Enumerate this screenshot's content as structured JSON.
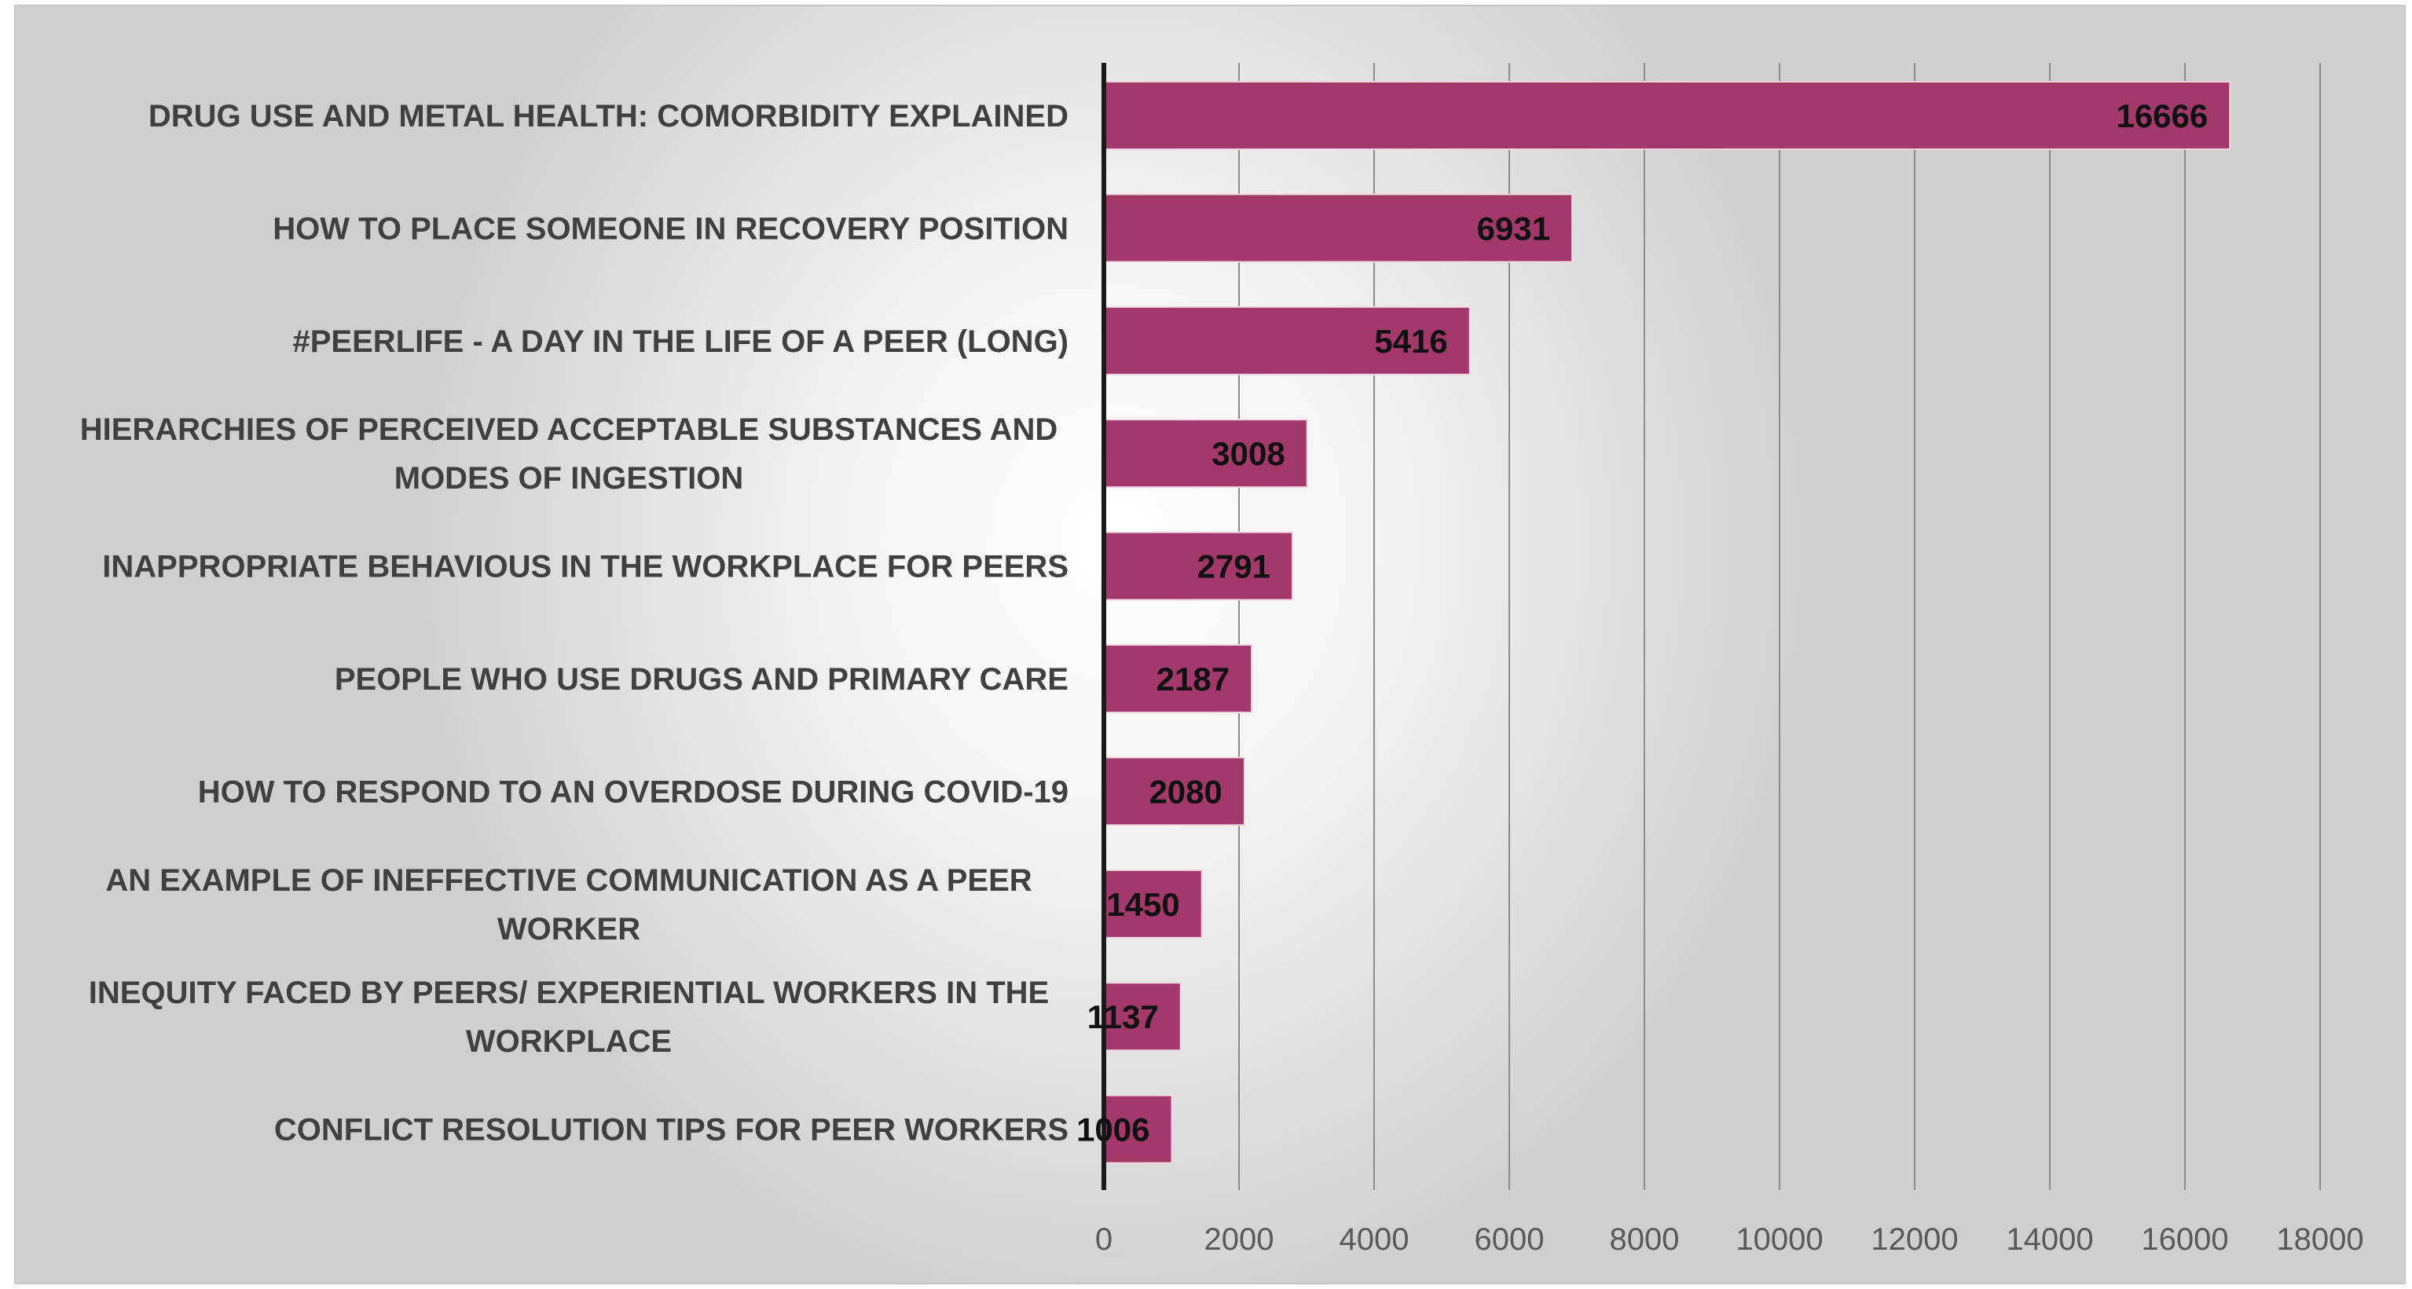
{
  "chart_data": {
    "type": "bar",
    "orientation": "horizontal",
    "categories": [
      [
        "DRUG USE AND METAL HEALTH: COMORBIDITY EXPLAINED"
      ],
      [
        "HOW TO PLACE SOMEONE IN RECOVERY POSITION"
      ],
      [
        "#PEERLIFE - A DAY IN THE LIFE OF A PEER (LONG)"
      ],
      [
        "HIERARCHIES OF PERCEIVED ACCEPTABLE SUBSTANCES AND",
        "MODES OF INGESTION"
      ],
      [
        "INAPPROPRIATE BEHAVIOUS IN THE WORKPLACE FOR PEERS"
      ],
      [
        "PEOPLE WHO USE DRUGS AND PRIMARY CARE"
      ],
      [
        "HOW TO RESPOND TO AN OVERDOSE DURING COVID-19"
      ],
      [
        "AN EXAMPLE OF INEFFECTIVE COMMUNICATION AS A PEER",
        "WORKER"
      ],
      [
        "INEQUITY FACED BY PEERS/ EXPERIENTIAL WORKERS IN THE",
        "WORKPLACE"
      ],
      [
        "CONFLICT RESOLUTION TIPS FOR PEER WORKERS"
      ]
    ],
    "values": [
      16666,
      6931,
      5416,
      3008,
      2791,
      2187,
      2080,
      1450,
      1137,
      1006
    ],
    "xlim": [
      0,
      18000
    ],
    "x_ticks": [
      0,
      2000,
      4000,
      6000,
      8000,
      10000,
      12000,
      14000,
      16000,
      18000
    ],
    "grid": "vertical",
    "data_labels": true,
    "colors": {
      "bar": "#a3386a",
      "bar_stroke": "#f2d7e3",
      "grid": "#8c8c8c",
      "axis": "#1a1a1a"
    }
  }
}
